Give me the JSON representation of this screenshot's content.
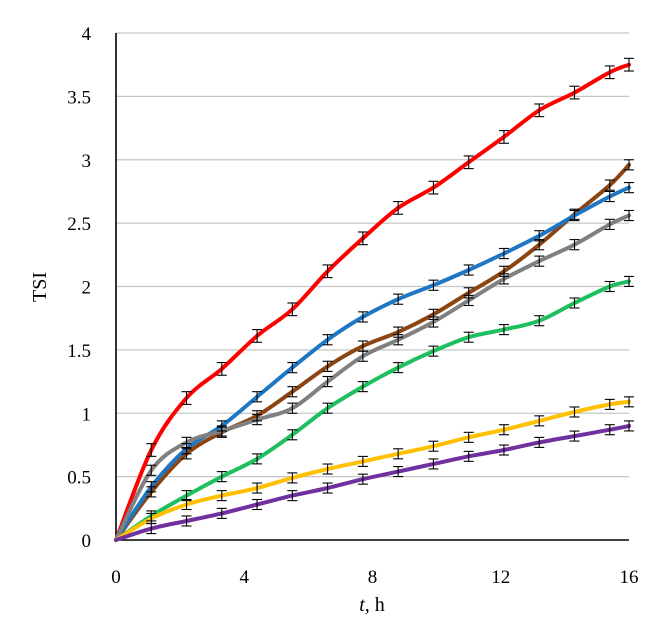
{
  "chart_data": {
    "type": "line",
    "xlabel_italic": "t",
    "xlabel_rest": ", h",
    "ylabel": "TSI",
    "xlim": [
      0,
      16
    ],
    "ylim": [
      0,
      4
    ],
    "xticks": [
      0,
      4,
      8,
      12,
      16
    ],
    "yticks": [
      0,
      0.5,
      1,
      1.5,
      2,
      2.5,
      3,
      3.5,
      4
    ],
    "grid": "horizontal",
    "legend": "none",
    "x": [
      0,
      1.1,
      2.2,
      3.3,
      4.4,
      5.5,
      6.6,
      7.7,
      8.8,
      9.9,
      11,
      12.1,
      13.2,
      14.3,
      15.4,
      16
    ],
    "series": [
      {
        "color": "#ff0000",
        "values": [
          0,
          0.71,
          1.12,
          1.35,
          1.61,
          1.82,
          2.12,
          2.38,
          2.62,
          2.78,
          2.98,
          3.18,
          3.39,
          3.53,
          3.69,
          3.75
        ],
        "error": 0.05
      },
      {
        "color": "#8b4513",
        "values": [
          0,
          0.38,
          0.68,
          0.85,
          0.98,
          1.17,
          1.37,
          1.53,
          1.64,
          1.78,
          1.95,
          2.12,
          2.33,
          2.57,
          2.8,
          2.96
        ],
        "error": 0.04
      },
      {
        "color": "#1f77c4",
        "values": [
          0,
          0.42,
          0.72,
          0.9,
          1.13,
          1.36,
          1.58,
          1.76,
          1.9,
          2.01,
          2.13,
          2.26,
          2.4,
          2.56,
          2.71,
          2.78
        ],
        "error": 0.04
      },
      {
        "color": "#808080",
        "values": [
          0,
          0.55,
          0.77,
          0.86,
          0.95,
          1.04,
          1.25,
          1.45,
          1.58,
          1.72,
          1.89,
          2.06,
          2.2,
          2.33,
          2.49,
          2.56
        ],
        "error": 0.04
      },
      {
        "color": "#1fbf5f",
        "values": [
          0,
          0.19,
          0.35,
          0.5,
          0.64,
          0.83,
          1.04,
          1.21,
          1.36,
          1.49,
          1.6,
          1.66,
          1.73,
          1.87,
          2.0,
          2.04
        ],
        "error": 0.03
      },
      {
        "color": "#ffc000",
        "values": [
          0,
          0.17,
          0.28,
          0.35,
          0.41,
          0.49,
          0.56,
          0.62,
          0.68,
          0.74,
          0.81,
          0.87,
          0.94,
          1.01,
          1.07,
          1.09
        ],
        "error": 0.02
      },
      {
        "color": "#7030a0",
        "values": [
          0,
          0.09,
          0.15,
          0.21,
          0.28,
          0.35,
          0.41,
          0.48,
          0.54,
          0.6,
          0.66,
          0.71,
          0.77,
          0.82,
          0.87,
          0.9
        ],
        "error": 0.02
      }
    ]
  }
}
